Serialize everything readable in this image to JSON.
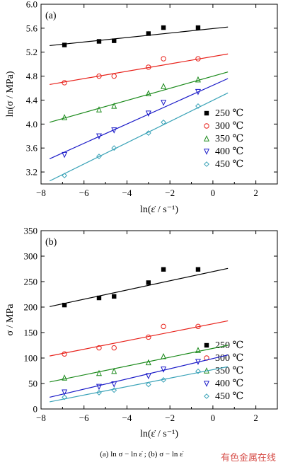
{
  "chart_data": [
    {
      "type": "scatter",
      "panel_label": "(a)",
      "xlabel": "ln(ε̇ / s⁻¹)",
      "ylabel": "ln(σ / MPa)",
      "xlim": [
        -8,
        3
      ],
      "ylim": [
        3.0,
        6.0
      ],
      "xticks": [
        -8,
        -6,
        -4,
        -2,
        0,
        2
      ],
      "yticks": [
        3.2,
        3.6,
        4.0,
        4.4,
        4.8,
        5.2,
        5.6,
        6.0
      ],
      "ytick_labels": [
        "3.2",
        "3.6",
        "4.0",
        "4.4",
        "4.8",
        "5.2",
        "5.6",
        "6.0"
      ],
      "grid": false,
      "legend_position": "right",
      "x": [
        -6.91,
        -5.3,
        -4.6,
        -3.0,
        -2.3,
        -0.69
      ],
      "series": [
        {
          "name": "250 ℃",
          "marker": "square",
          "color": "#000000",
          "values": [
            5.32,
            5.38,
            5.39,
            5.51,
            5.61,
            5.61
          ],
          "fit": [
            -7.6,
            5.31,
            0.7,
            5.62
          ]
        },
        {
          "name": "300 ℃",
          "marker": "circle",
          "color": "#e8221b",
          "values": [
            4.69,
            4.8,
            4.8,
            4.95,
            5.09,
            5.09
          ],
          "fit": [
            -7.6,
            4.66,
            0.7,
            5.17
          ]
        },
        {
          "name": "350 ℃",
          "marker": "triangle-up",
          "color": "#1b8a1b",
          "values": [
            4.11,
            4.24,
            4.3,
            4.51,
            4.63,
            4.74
          ],
          "fit": [
            -7.6,
            4.03,
            0.7,
            4.87
          ]
        },
        {
          "name": "400 ℃",
          "marker": "triangle-down",
          "color": "#1a1ac8",
          "values": [
            3.49,
            3.8,
            3.9,
            4.18,
            4.36,
            4.54
          ],
          "fit": [
            -7.6,
            3.42,
            0.7,
            4.76
          ]
        },
        {
          "name": "450 ℃",
          "marker": "diamond",
          "color": "#3ba3b8",
          "values": [
            3.14,
            3.46,
            3.6,
            3.85,
            4.03,
            4.3
          ],
          "fit": [
            -7.6,
            3.05,
            0.7,
            4.52
          ]
        }
      ]
    },
    {
      "type": "scatter",
      "panel_label": "(b)",
      "xlabel": "ln(ε̇ / s⁻¹)",
      "ylabel": "σ / MPa",
      "xlim": [
        -8,
        3
      ],
      "ylim": [
        0,
        350
      ],
      "xticks": [
        -8,
        -6,
        -4,
        -2,
        0,
        2
      ],
      "yticks": [
        0,
        50,
        100,
        150,
        200,
        250,
        300,
        350
      ],
      "ytick_labels": [
        "0",
        "50",
        "100",
        "150",
        "200",
        "250",
        "300",
        "350"
      ],
      "grid": false,
      "legend_position": "right",
      "x": [
        -6.91,
        -5.3,
        -4.6,
        -3.0,
        -2.3,
        -0.69
      ],
      "series": [
        {
          "name": "250 ℃",
          "marker": "square",
          "color": "#000000",
          "values": [
            204,
            218,
            221,
            248,
            274,
            274
          ],
          "fit": [
            -7.6,
            201,
            0.7,
            276
          ]
        },
        {
          "name": "300 ℃",
          "marker": "circle",
          "color": "#e8221b",
          "values": [
            108,
            120,
            120,
            141,
            162,
            162
          ],
          "fit": [
            -7.6,
            104,
            0.7,
            173
          ]
        },
        {
          "name": "350 ℃",
          "marker": "triangle-up",
          "color": "#1b8a1b",
          "values": [
            61,
            70,
            74,
            91,
            103,
            115
          ],
          "fit": [
            -7.6,
            53,
            0.7,
            125
          ]
        },
        {
          "name": "400 ℃",
          "marker": "triangle-down",
          "color": "#1a1ac8",
          "values": [
            33,
            44,
            49,
            65,
            78,
            93
          ],
          "fit": [
            -7.6,
            23,
            0.7,
            106
          ]
        },
        {
          "name": "450 ℃",
          "marker": "diamond",
          "color": "#3ba3b8",
          "values": [
            23,
            32,
            37,
            48,
            57,
            74
          ],
          "fit": [
            -7.6,
            14,
            0.7,
            83
          ]
        }
      ]
    }
  ],
  "caption": "(a)  ln σ − ln ε̇ ;  (b)  σ − ln ε̇",
  "watermark": "有色金属在线"
}
